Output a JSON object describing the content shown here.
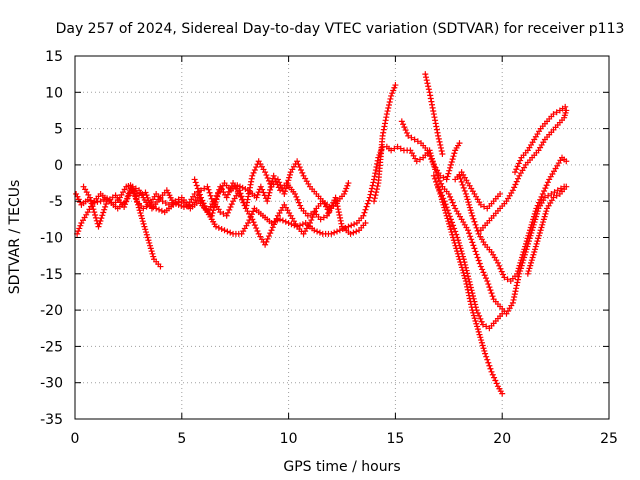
{
  "chart_data": {
    "type": "scatter",
    "title": "Day 257 of 2024, Sidereal Day-to-day VTEC variation (SDTVAR) for receiver p113",
    "xlabel": "GPS time / hours",
    "ylabel": "SDTVAR / TECUs",
    "xlim": [
      0,
      25
    ],
    "ylim": [
      -35,
      15
    ],
    "xticks": [
      0,
      5,
      10,
      15,
      20,
      25
    ],
    "yticks": [
      -35,
      -30,
      -25,
      -20,
      -15,
      -10,
      -5,
      0,
      5,
      10,
      15
    ],
    "grid": true,
    "marker": "+",
    "color": "#ff0000",
    "series": [
      {
        "points": [
          [
            0.05,
            -4
          ],
          [
            0.3,
            -5.5
          ],
          [
            0.6,
            -4.8
          ],
          [
            0.9,
            -5.2
          ],
          [
            1.2,
            -5
          ],
          [
            1.5,
            -4.6
          ],
          [
            1.8,
            -5.5
          ],
          [
            2.1,
            -4.5
          ],
          [
            2.4,
            -3
          ],
          [
            2.6,
            -2.8
          ],
          [
            2.9,
            -5
          ],
          [
            3.2,
            -6
          ],
          [
            3.5,
            -5.5
          ],
          [
            3.8,
            -4
          ],
          [
            4.1,
            -5
          ],
          [
            4.4,
            -5.5
          ],
          [
            4.7,
            -5
          ],
          [
            5.0,
            -4.5
          ],
          [
            5.3,
            -5.5
          ],
          [
            5.6,
            -4
          ],
          [
            5.9,
            -3.5
          ],
          [
            6.2,
            -3
          ],
          [
            6.5,
            -5.5
          ],
          [
            6.8,
            -3
          ],
          [
            7.1,
            -4.5
          ],
          [
            7.4,
            -2.5
          ],
          [
            7.7,
            -4
          ],
          [
            8.0,
            -6
          ],
          [
            8.3,
            -1.5
          ],
          [
            8.6,
            0.5
          ],
          [
            8.9,
            -1
          ],
          [
            9.2,
            -3
          ],
          [
            9.5,
            -2
          ],
          [
            9.8,
            -4
          ],
          [
            10.1,
            -1
          ],
          [
            10.4,
            0.5
          ],
          [
            10.7,
            -1.5
          ],
          [
            11.0,
            -3
          ],
          [
            11.3,
            -4
          ],
          [
            11.6,
            -5
          ],
          [
            12.0,
            -6
          ],
          [
            12.3,
            -5
          ],
          [
            12.6,
            -4
          ],
          [
            12.8,
            -2.5
          ]
        ]
      },
      {
        "points": [
          [
            0.1,
            -9.5
          ],
          [
            0.3,
            -8
          ],
          [
            0.6,
            -6.5
          ],
          [
            0.9,
            -5
          ],
          [
            1.2,
            -4
          ],
          [
            1.6,
            -5
          ],
          [
            2.0,
            -6
          ],
          [
            2.4,
            -5
          ],
          [
            2.7,
            -3
          ],
          [
            3.0,
            -3.5
          ],
          [
            3.4,
            -5.5
          ],
          [
            3.8,
            -6
          ],
          [
            4.2,
            -6.5
          ],
          [
            4.6,
            -5.5
          ],
          [
            5.0,
            -5
          ],
          [
            5.4,
            -6
          ],
          [
            5.8,
            -5
          ],
          [
            6.2,
            -6.5
          ],
          [
            6.6,
            -8.5
          ],
          [
            7.0,
            -9
          ],
          [
            7.4,
            -9.5
          ],
          [
            7.8,
            -9.5
          ],
          [
            8.1,
            -8
          ],
          [
            8.4,
            -6
          ],
          [
            8.8,
            -7
          ],
          [
            9.2,
            -8
          ],
          [
            9.6,
            -7.5
          ],
          [
            10.0,
            -8
          ],
          [
            10.4,
            -8.5
          ],
          [
            10.8,
            -8
          ],
          [
            11.2,
            -9
          ],
          [
            11.6,
            -9.5
          ],
          [
            12.0,
            -9.5
          ],
          [
            12.4,
            -9
          ],
          [
            12.8,
            -8.5
          ],
          [
            13.2,
            -8
          ],
          [
            13.5,
            -7
          ],
          [
            13.8,
            -4.5
          ],
          [
            14.0,
            -2
          ],
          [
            14.2,
            1
          ],
          [
            14.4,
            2.5
          ],
          [
            14.6,
            2.5
          ],
          [
            14.8,
            2
          ],
          [
            15.1,
            2.5
          ],
          [
            15.4,
            2
          ],
          [
            15.7,
            2
          ],
          [
            16.0,
            0.5
          ],
          [
            16.3,
            1
          ],
          [
            16.6,
            2
          ],
          [
            16.9,
            -1
          ],
          [
            17.2,
            -3
          ],
          [
            17.5,
            -4
          ],
          [
            17.8,
            -6
          ],
          [
            18.1,
            -7.5
          ],
          [
            18.4,
            -9
          ],
          [
            18.7,
            -11.5
          ],
          [
            19.0,
            -14
          ],
          [
            19.3,
            -16
          ],
          [
            19.6,
            -18.5
          ],
          [
            19.9,
            -19.5
          ],
          [
            20.2,
            -20.5
          ],
          [
            20.5,
            -19
          ],
          [
            20.8,
            -15
          ],
          [
            21.1,
            -12
          ],
          [
            21.4,
            -9
          ],
          [
            21.7,
            -6
          ],
          [
            22.0,
            -4.5
          ],
          [
            22.3,
            -4
          ],
          [
            22.6,
            -3.5
          ],
          [
            22.9,
            -3
          ]
        ]
      },
      {
        "points": [
          [
            2.8,
            -4
          ],
          [
            3.1,
            -7
          ],
          [
            3.4,
            -10
          ],
          [
            3.7,
            -13
          ],
          [
            4.0,
            -14
          ]
        ]
      },
      {
        "points": [
          [
            5.6,
            -2
          ],
          [
            5.9,
            -4.5
          ],
          [
            6.2,
            -6.5
          ],
          [
            6.5,
            -5
          ],
          [
            6.8,
            -6.5
          ],
          [
            7.1,
            -7
          ],
          [
            7.4,
            -5
          ],
          [
            7.7,
            -3.5
          ],
          [
            8.0,
            -6
          ],
          [
            8.3,
            -7.5
          ],
          [
            8.6,
            -9.5
          ],
          [
            8.9,
            -11
          ],
          [
            9.2,
            -9
          ],
          [
            9.5,
            -7
          ],
          [
            9.8,
            -5.5
          ],
          [
            10.1,
            -7
          ],
          [
            10.4,
            -8.5
          ],
          [
            10.7,
            -9.5
          ],
          [
            11.0,
            -8
          ],
          [
            11.3,
            -6
          ],
          [
            11.6,
            -5
          ],
          [
            11.9,
            -6.5
          ]
        ]
      },
      {
        "points": [
          [
            14.0,
            -5
          ],
          [
            14.2,
            -2.5
          ],
          [
            14.4,
            4
          ],
          [
            14.6,
            7
          ],
          [
            14.8,
            9.5
          ],
          [
            15.0,
            11
          ]
        ]
      },
      {
        "points": [
          [
            15.3,
            6
          ],
          [
            15.6,
            4
          ],
          [
            15.9,
            3.5
          ],
          [
            16.2,
            3
          ],
          [
            16.5,
            2
          ],
          [
            16.8,
            0
          ],
          [
            17.1,
            -1.5
          ],
          [
            17.4,
            -2
          ],
          [
            17.6,
            0
          ],
          [
            17.8,
            2
          ],
          [
            18.0,
            3
          ]
        ]
      },
      {
        "points": [
          [
            16.4,
            12.5
          ],
          [
            16.6,
            10
          ],
          [
            16.8,
            7
          ],
          [
            17.0,
            4
          ],
          [
            17.2,
            1.5
          ]
        ]
      },
      {
        "points": [
          [
            16.8,
            -1.5
          ],
          [
            17.1,
            -4
          ],
          [
            17.4,
            -7
          ],
          [
            17.7,
            -10
          ],
          [
            18.0,
            -13
          ],
          [
            18.3,
            -16
          ],
          [
            18.6,
            -20
          ],
          [
            18.9,
            -23
          ],
          [
            19.2,
            -26
          ],
          [
            19.5,
            -28.5
          ],
          [
            19.8,
            -30.5
          ],
          [
            20.0,
            -31.5
          ]
        ]
      },
      {
        "points": [
          [
            17.0,
            -3
          ],
          [
            17.3,
            -5
          ],
          [
            17.6,
            -7.5
          ],
          [
            17.9,
            -10
          ],
          [
            18.2,
            -13
          ],
          [
            18.5,
            -16.5
          ],
          [
            18.8,
            -20
          ],
          [
            19.1,
            -22
          ],
          [
            19.4,
            -22.5
          ],
          [
            19.7,
            -21.5
          ],
          [
            20.0,
            -20.5
          ]
        ]
      },
      {
        "points": [
          [
            17.8,
            -2
          ],
          [
            18.1,
            -1
          ],
          [
            18.4,
            -2.5
          ],
          [
            18.7,
            -4
          ],
          [
            19.0,
            -5.5
          ],
          [
            19.3,
            -6
          ],
          [
            19.6,
            -5
          ],
          [
            19.9,
            -4
          ]
        ]
      },
      {
        "points": [
          [
            18.0,
            -1.5
          ],
          [
            18.3,
            -4
          ],
          [
            18.6,
            -7
          ],
          [
            18.9,
            -9.5
          ],
          [
            19.2,
            -11
          ],
          [
            19.5,
            -12
          ],
          [
            19.8,
            -13.5
          ],
          [
            20.1,
            -15.5
          ],
          [
            20.4,
            -16
          ],
          [
            20.7,
            -15
          ],
          [
            21.0,
            -12
          ],
          [
            21.3,
            -9
          ],
          [
            21.6,
            -6
          ],
          [
            21.9,
            -4
          ],
          [
            22.2,
            -2
          ],
          [
            22.5,
            -0.5
          ],
          [
            22.8,
            1
          ],
          [
            23.0,
            0.5
          ]
        ]
      },
      {
        "points": [
          [
            19.0,
            -9
          ],
          [
            19.3,
            -8
          ],
          [
            19.6,
            -7
          ],
          [
            19.9,
            -6
          ],
          [
            20.2,
            -5
          ],
          [
            20.5,
            -3.5
          ],
          [
            20.8,
            -1.5
          ],
          [
            21.1,
            0
          ],
          [
            21.4,
            1
          ],
          [
            21.7,
            2
          ],
          [
            22.0,
            3.5
          ],
          [
            22.3,
            4.5
          ],
          [
            22.6,
            5.5
          ],
          [
            22.9,
            6.5
          ],
          [
            23.0,
            7.5
          ]
        ]
      },
      {
        "points": [
          [
            20.6,
            -1
          ],
          [
            20.9,
            1
          ],
          [
            21.2,
            2
          ],
          [
            21.5,
            3.5
          ],
          [
            21.8,
            5
          ],
          [
            22.1,
            6
          ],
          [
            22.4,
            7
          ],
          [
            22.7,
            7.5
          ],
          [
            22.95,
            8
          ]
        ]
      },
      {
        "points": [
          [
            21.2,
            -15
          ],
          [
            21.5,
            -12
          ],
          [
            21.8,
            -9
          ],
          [
            22.1,
            -6
          ],
          [
            22.4,
            -4.5
          ],
          [
            22.7,
            -4
          ],
          [
            23.0,
            -3
          ]
        ]
      },
      {
        "points": [
          [
            0.4,
            -3
          ],
          [
            0.7,
            -4.5
          ],
          [
            1.1,
            -8.5
          ],
          [
            1.5,
            -5
          ],
          [
            1.9,
            -4.2
          ],
          [
            2.3,
            -5.8
          ],
          [
            2.6,
            -3.2
          ],
          [
            3.0,
            -4.2
          ],
          [
            3.3,
            -3.8
          ],
          [
            3.6,
            -6
          ],
          [
            4.0,
            -4.5
          ],
          [
            4.3,
            -3.5
          ],
          [
            4.6,
            -5.2
          ],
          [
            5.1,
            -5.8
          ],
          [
            5.5,
            -5.5
          ],
          [
            5.8,
            -4.2
          ],
          [
            6.1,
            -6
          ],
          [
            6.4,
            -7
          ],
          [
            6.7,
            -4
          ],
          [
            7.0,
            -2.5
          ],
          [
            7.3,
            -3.5
          ],
          [
            7.6,
            -2.8
          ],
          [
            8.1,
            -3.5
          ],
          [
            8.5,
            -4.5
          ],
          [
            8.7,
            -3
          ],
          [
            9.0,
            -5
          ],
          [
            9.3,
            -1.5
          ],
          [
            9.6,
            -3.5
          ],
          [
            9.9,
            -2.5
          ],
          [
            10.3,
            -4
          ],
          [
            10.6,
            -6
          ],
          [
            10.9,
            -7
          ],
          [
            11.2,
            -6.5
          ],
          [
            11.5,
            -7.5
          ],
          [
            11.8,
            -7
          ],
          [
            12.2,
            -4.5
          ],
          [
            12.5,
            -8.5
          ],
          [
            12.9,
            -9.5
          ],
          [
            13.3,
            -9
          ],
          [
            13.6,
            -8
          ]
        ]
      }
    ]
  }
}
